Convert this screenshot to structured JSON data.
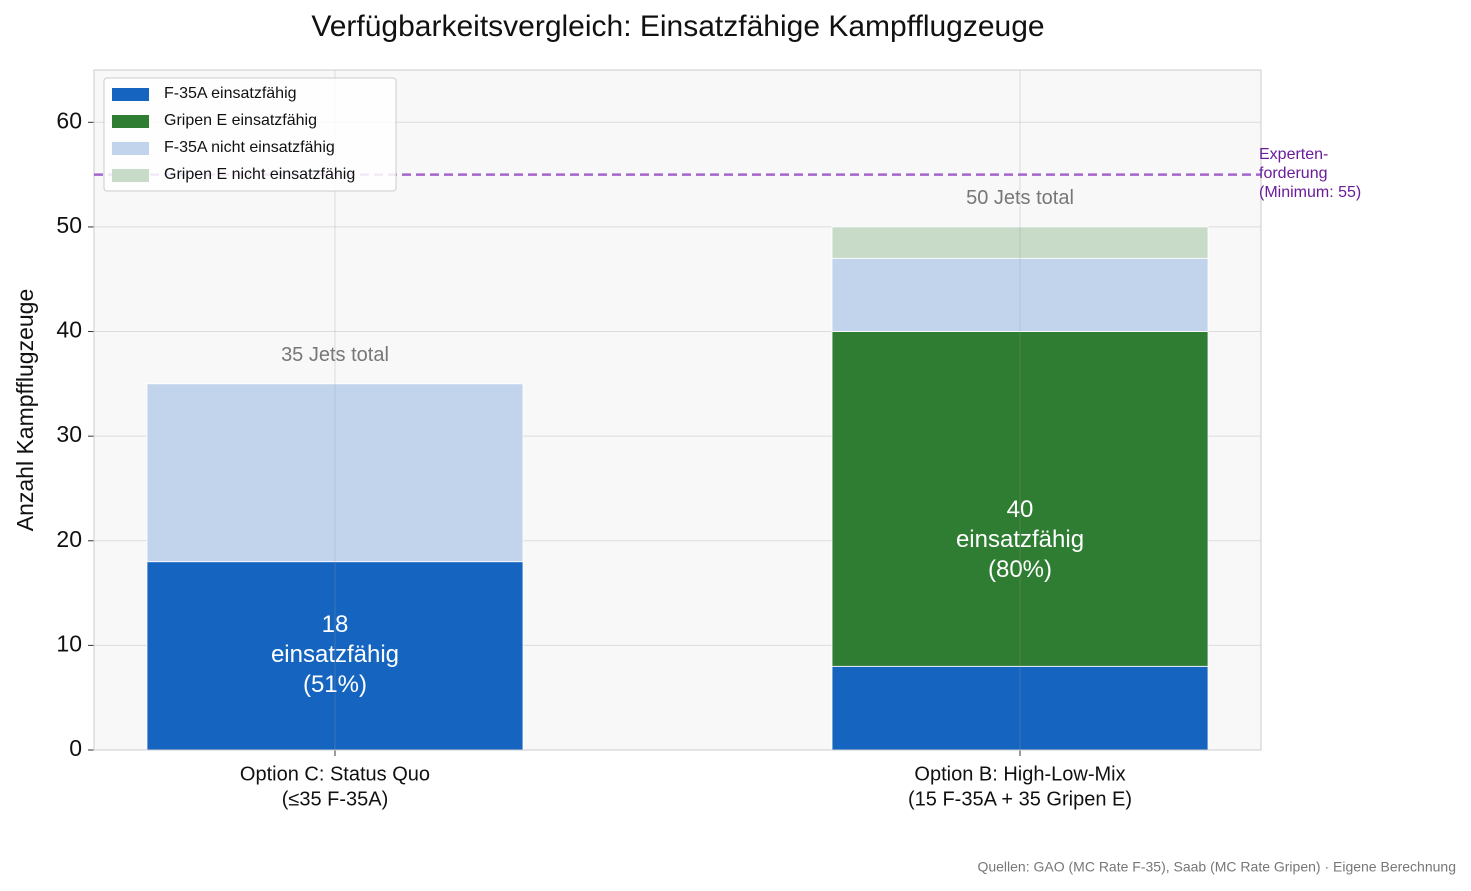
{
  "chart_data": {
    "type": "stacked_bar",
    "title": "Verfügbarkeitsvergleich: Einsatzfähige Kampfflugzeuge",
    "y_label": "Anzahl Kampfflugzeuge",
    "categories": [
      [
        "Option C: Status Quo",
        "(≤35 F-35A)"
      ],
      [
        "Option B: High-Low-Mix",
        "(15 F-35A + 35 Gripen E)"
      ]
    ],
    "series": [
      {
        "name": "F-35A einsatzfähig",
        "color": "#1565c0",
        "values": [
          18,
          8
        ]
      },
      {
        "name": "Gripen E einsatzfähig",
        "color": "#2e7d32",
        "values": [
          0,
          32
        ]
      },
      {
        "name": "F-35A nicht einsatzfähig",
        "color": "#c1d4ec",
        "values": [
          17,
          7
        ]
      },
      {
        "name": "Gripen E nicht einsatzfähig",
        "color": "#c8dbc8",
        "values": [
          0,
          3
        ]
      }
    ],
    "operational_labels": [
      [
        "18",
        "einsatzfähig",
        "(51%)"
      ],
      [
        "40",
        "einsatzfähig",
        "(80%)"
      ]
    ],
    "total_labels": [
      "35 Jets total",
      "50 Jets total"
    ],
    "reference_line": {
      "value": 55,
      "label": [
        "Experten-",
        "forderung",
        "(Minimum: 55)"
      ],
      "color": "#a366cc"
    },
    "ylim": [
      0,
      65
    ],
    "yticks": [
      0,
      10,
      20,
      30,
      40,
      50,
      60
    ],
    "grid": true,
    "legend": "upper-left",
    "source": "Quellen: GAO (MC Rate F-35), Saab (MC Rate Gripen) · Eigene Berechnung"
  }
}
